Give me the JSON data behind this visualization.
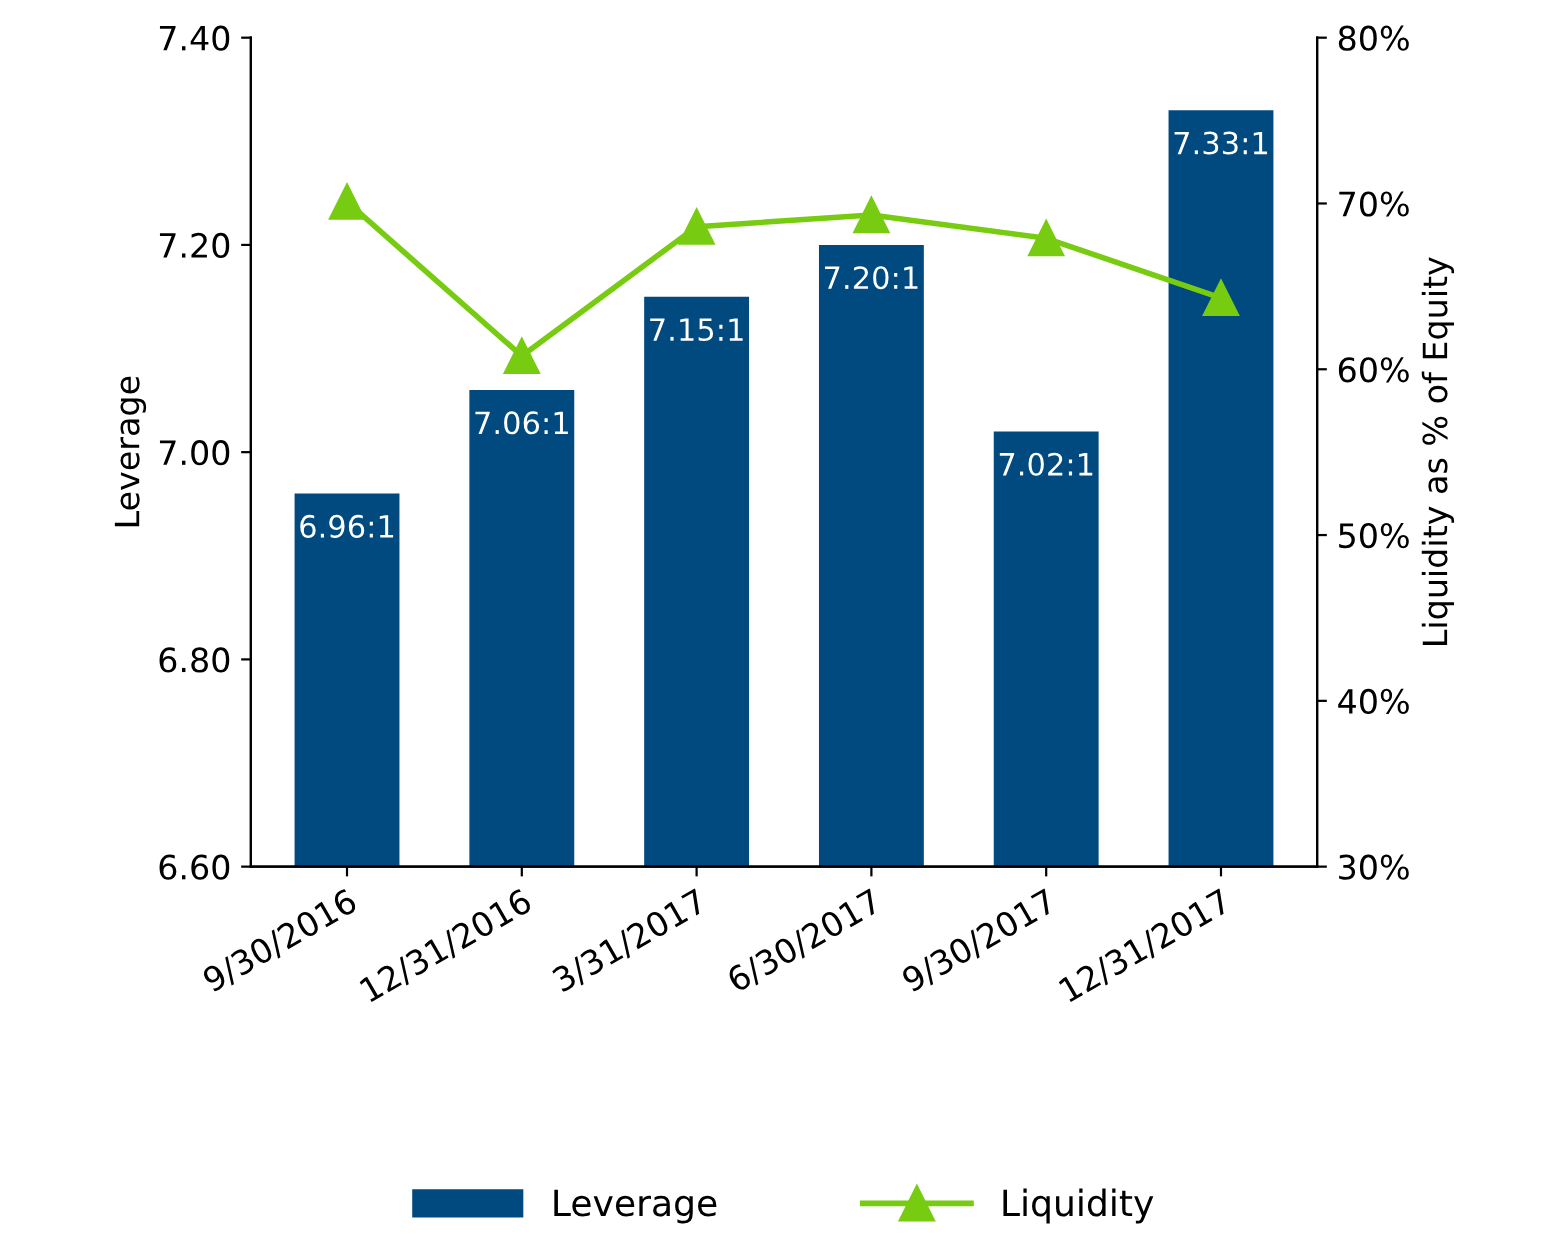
{
  "chart_data": {
    "type": "bar",
    "ylabel": "Leverage",
    "y2label": "Liquidity as % of Equity",
    "categories": [
      "9/30/2016",
      "12/31/2016",
      "3/31/2017",
      "6/30/2017",
      "9/30/2017",
      "12/31/2017"
    ],
    "series": [
      {
        "name": "Leverage",
        "color": "#004a80",
        "values": [
          6.96,
          7.06,
          7.15,
          7.2,
          7.02,
          7.33
        ],
        "value_labels": [
          "6.96:1",
          "7.06:1",
          "7.15:1",
          "7.20:1",
          "7.02:1",
          "7.33:1"
        ]
      },
      {
        "name": "Liquidity",
        "type": "line",
        "axis": "y2",
        "color": "#77cc11",
        "marker": "triangle",
        "values": [
          70.1,
          60.8,
          68.6,
          69.3,
          67.9,
          64.3
        ]
      }
    ],
    "ylim": [
      6.6,
      7.4
    ],
    "yticks": [
      {
        "value": 6.6,
        "label": "6.60"
      },
      {
        "value": 6.8,
        "label": "6.80"
      },
      {
        "value": 7.0,
        "label": "7.00"
      },
      {
        "value": 7.2,
        "label": "7.20"
      },
      {
        "value": 7.4,
        "label": "7.40"
      }
    ],
    "y2lim": [
      30,
      80
    ],
    "y2ticks": [
      {
        "value": 30,
        "label": "30%"
      },
      {
        "value": 40,
        "label": "40%"
      },
      {
        "value": 50,
        "label": "50%"
      },
      {
        "value": 60,
        "label": "60%"
      },
      {
        "value": 70,
        "label": "70%"
      },
      {
        "value": 80,
        "label": "80%"
      }
    ],
    "grid": false,
    "legend": "bottom"
  }
}
